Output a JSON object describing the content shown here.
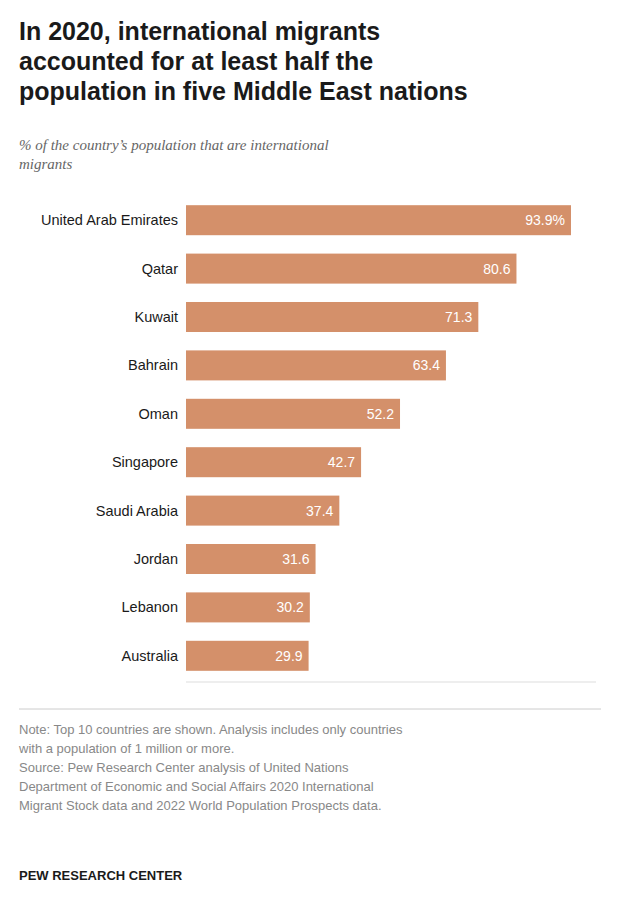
{
  "chart_data": {
    "type": "bar",
    "orientation": "horizontal",
    "title": "In 2020, international migrants\naccounted for at least half the\npopulation in five Middle East nations",
    "subtitle": "% of the country’s population that are international\nmigrants",
    "categories": [
      "United Arab Emirates",
      "Qatar",
      "Kuwait",
      "Bahrain",
      "Oman",
      "Singapore",
      "Saudi Arabia",
      "Jordan",
      "Lebanon",
      "Australia"
    ],
    "values": [
      93.9,
      80.6,
      71.3,
      63.4,
      52.2,
      42.7,
      37.4,
      31.6,
      30.2,
      29.9
    ],
    "value_labels": [
      "93.9%",
      "80.6",
      "71.3",
      "63.4",
      "52.2",
      "42.7",
      "37.4",
      "31.6",
      "30.2",
      "29.9"
    ],
    "color": "#D4906A",
    "xlim": [
      0,
      100
    ],
    "data_labels": true,
    "tick_labels": "y",
    "grid": false,
    "notes": [
      "Note: Top 10 countries are shown. Analysis includes only countries",
      "with a population of 1 million or more.",
      "Source: Pew Research Center analysis of United Nations",
      "Department of Economic and Social Affairs 2020 International",
      "Migrant Stock data and 2022 World Population Prospects data."
    ],
    "footer": "PEW RESEARCH CENTER"
  }
}
